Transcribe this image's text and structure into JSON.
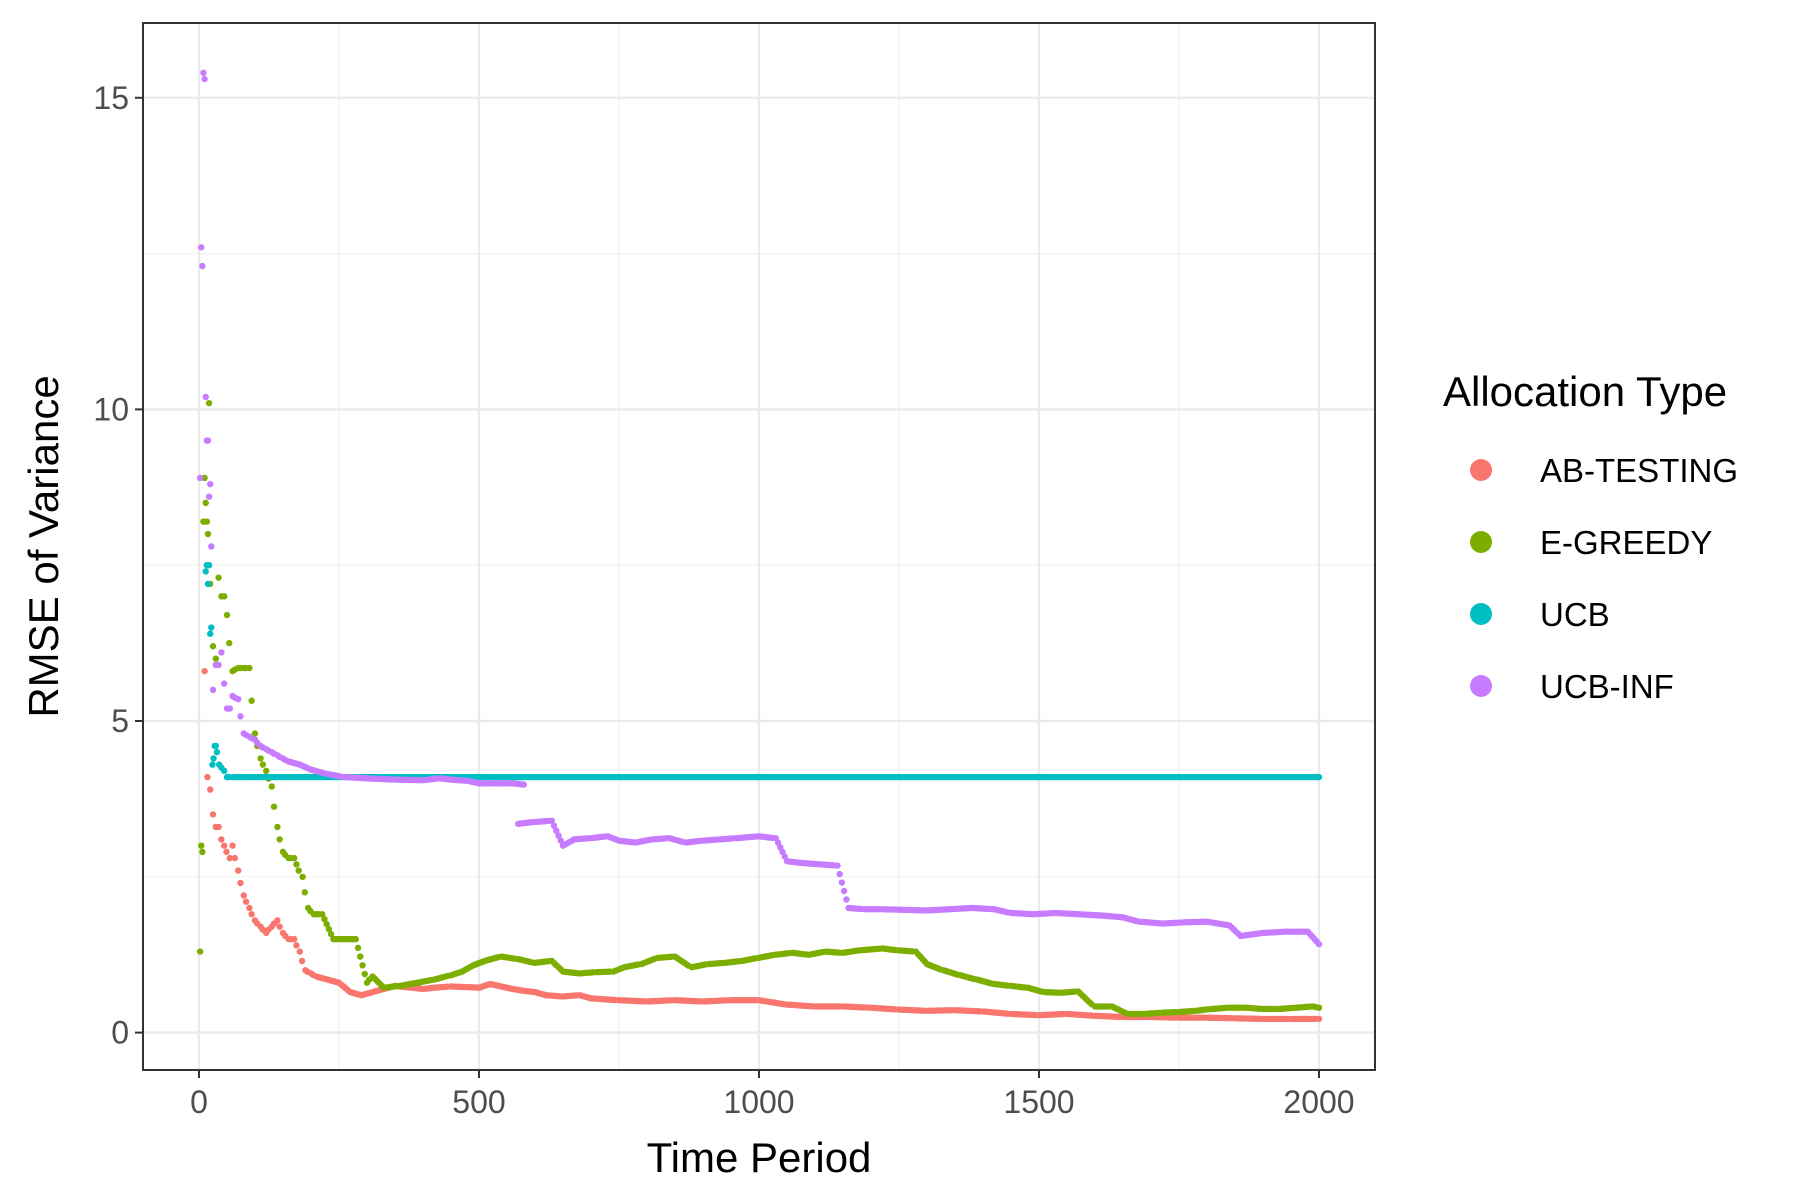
{
  "chart_data": {
    "type": "scatter",
    "xlabel": "Time Period",
    "ylabel": "RMSE of Variance",
    "xlim": [
      -100,
      2100
    ],
    "ylim": [
      -0.6,
      16.2
    ],
    "x_ticks": [
      0,
      500,
      1000,
      1500,
      2000
    ],
    "y_ticks": [
      0,
      5,
      10,
      15
    ],
    "grid": true,
    "legend": {
      "title": "Allocation Type",
      "placement": "right"
    },
    "series": [
      {
        "name": "AB-TESTING",
        "color": "#F8766D",
        "points": [
          [
            10,
            5.8
          ],
          [
            15,
            4.1
          ],
          [
            20,
            3.9
          ],
          [
            25,
            3.5
          ],
          [
            30,
            3.3
          ],
          [
            35,
            3.3
          ],
          [
            40,
            3.1
          ],
          [
            45,
            3.0
          ],
          [
            55,
            2.8
          ],
          [
            60,
            3.0
          ],
          [
            70,
            2.6
          ],
          [
            80,
            2.2
          ],
          [
            90,
            2.0
          ],
          [
            100,
            1.8
          ],
          [
            110,
            1.7
          ],
          [
            120,
            1.6
          ],
          [
            130,
            1.7
          ],
          [
            140,
            1.8
          ],
          [
            150,
            1.6
          ],
          [
            160,
            1.5
          ],
          [
            170,
            1.5
          ],
          [
            180,
            1.3
          ],
          [
            190,
            1.0
          ],
          [
            200,
            0.95
          ],
          [
            210,
            0.9
          ],
          [
            230,
            0.85
          ],
          [
            250,
            0.8
          ],
          [
            270,
            0.65
          ],
          [
            290,
            0.6
          ],
          [
            310,
            0.65
          ],
          [
            330,
            0.7
          ],
          [
            350,
            0.75
          ],
          [
            380,
            0.72
          ],
          [
            400,
            0.7
          ],
          [
            420,
            0.72
          ],
          [
            450,
            0.74
          ],
          [
            480,
            0.73
          ],
          [
            500,
            0.72
          ],
          [
            520,
            0.78
          ],
          [
            540,
            0.74
          ],
          [
            560,
            0.7
          ],
          [
            580,
            0.67
          ],
          [
            600,
            0.65
          ],
          [
            620,
            0.6
          ],
          [
            650,
            0.58
          ],
          [
            680,
            0.6
          ],
          [
            700,
            0.55
          ],
          [
            750,
            0.52
          ],
          [
            800,
            0.5
          ],
          [
            850,
            0.52
          ],
          [
            900,
            0.5
          ],
          [
            950,
            0.52
          ],
          [
            1000,
            0.52
          ],
          [
            1050,
            0.45
          ],
          [
            1100,
            0.42
          ],
          [
            1150,
            0.42
          ],
          [
            1200,
            0.4
          ],
          [
            1250,
            0.37
          ],
          [
            1300,
            0.35
          ],
          [
            1350,
            0.36
          ],
          [
            1400,
            0.34
          ],
          [
            1450,
            0.3
          ],
          [
            1500,
            0.28
          ],
          [
            1550,
            0.3
          ],
          [
            1600,
            0.27
          ],
          [
            1650,
            0.25
          ],
          [
            1700,
            0.25
          ],
          [
            1750,
            0.24
          ],
          [
            1800,
            0.24
          ],
          [
            1850,
            0.23
          ],
          [
            1900,
            0.22
          ],
          [
            1950,
            0.22
          ],
          [
            2000,
            0.22
          ]
        ]
      },
      {
        "name": "E-GREEDY",
        "color": "#7CAE00",
        "points": [
          [
            2,
            1.3
          ],
          [
            4,
            3.0
          ],
          [
            6,
            2.9
          ],
          [
            8,
            8.2
          ],
          [
            10,
            8.9
          ],
          [
            12,
            8.5
          ],
          [
            14,
            8.2
          ],
          [
            16,
            8.0
          ],
          [
            18,
            10.1
          ],
          [
            20,
            7.2
          ],
          [
            25,
            6.2
          ],
          [
            30,
            6.0
          ],
          [
            35,
            7.3
          ],
          [
            40,
            7.0
          ],
          [
            45,
            7.0
          ],
          [
            50,
            6.7
          ],
          [
            60,
            5.8
          ],
          [
            70,
            5.85
          ],
          [
            80,
            5.85
          ],
          [
            90,
            5.85
          ],
          [
            100,
            4.8
          ],
          [
            110,
            4.4
          ],
          [
            120,
            4.2
          ],
          [
            130,
            3.95
          ],
          [
            140,
            3.3
          ],
          [
            150,
            2.9
          ],
          [
            160,
            2.8
          ],
          [
            170,
            2.8
          ],
          [
            185,
            2.5
          ],
          [
            195,
            2.0
          ],
          [
            205,
            1.9
          ],
          [
            220,
            1.9
          ],
          [
            240,
            1.5
          ],
          [
            260,
            1.5
          ],
          [
            280,
            1.5
          ],
          [
            300,
            0.8
          ],
          [
            310,
            0.9
          ],
          [
            330,
            0.72
          ],
          [
            360,
            0.75
          ],
          [
            390,
            0.8
          ],
          [
            420,
            0.85
          ],
          [
            450,
            0.92
          ],
          [
            470,
            0.98
          ],
          [
            490,
            1.08
          ],
          [
            510,
            1.15
          ],
          [
            540,
            1.22
          ],
          [
            570,
            1.18
          ],
          [
            600,
            1.12
          ],
          [
            630,
            1.15
          ],
          [
            650,
            0.98
          ],
          [
            680,
            0.95
          ],
          [
            710,
            0.97
          ],
          [
            740,
            0.98
          ],
          [
            760,
            1.05
          ],
          [
            790,
            1.1
          ],
          [
            820,
            1.2
          ],
          [
            850,
            1.22
          ],
          [
            880,
            1.05
          ],
          [
            910,
            1.1
          ],
          [
            940,
            1.12
          ],
          [
            970,
            1.15
          ],
          [
            1000,
            1.2
          ],
          [
            1030,
            1.25
          ],
          [
            1060,
            1.28
          ],
          [
            1090,
            1.25
          ],
          [
            1120,
            1.3
          ],
          [
            1150,
            1.28
          ],
          [
            1180,
            1.32
          ],
          [
            1220,
            1.35
          ],
          [
            1250,
            1.32
          ],
          [
            1280,
            1.3
          ],
          [
            1300,
            1.1
          ],
          [
            1330,
            1.0
          ],
          [
            1360,
            0.92
          ],
          [
            1390,
            0.85
          ],
          [
            1420,
            0.78
          ],
          [
            1450,
            0.75
          ],
          [
            1480,
            0.72
          ],
          [
            1510,
            0.65
          ],
          [
            1540,
            0.64
          ],
          [
            1570,
            0.66
          ],
          [
            1600,
            0.42
          ],
          [
            1630,
            0.42
          ],
          [
            1660,
            0.3
          ],
          [
            1690,
            0.3
          ],
          [
            1720,
            0.32
          ],
          [
            1750,
            0.33
          ],
          [
            1780,
            0.35
          ],
          [
            1810,
            0.38
          ],
          [
            1840,
            0.4
          ],
          [
            1870,
            0.4
          ],
          [
            1900,
            0.38
          ],
          [
            1930,
            0.38
          ],
          [
            1960,
            0.4
          ],
          [
            1990,
            0.42
          ],
          [
            2000,
            0.4
          ]
        ]
      },
      {
        "name": "UCB",
        "color": "#00BFC4",
        "points": [
          [
            12,
            7.4
          ],
          [
            14,
            7.5
          ],
          [
            16,
            7.2
          ],
          [
            18,
            7.5
          ],
          [
            20,
            6.4
          ],
          [
            22,
            6.5
          ],
          [
            24,
            4.3
          ],
          [
            26,
            4.4
          ],
          [
            28,
            4.6
          ],
          [
            30,
            4.6
          ],
          [
            32,
            4.5
          ],
          [
            36,
            4.3
          ],
          [
            40,
            4.25
          ],
          [
            45,
            4.2
          ],
          [
            50,
            4.1
          ],
          [
            60,
            4.1
          ],
          [
            100,
            4.1
          ],
          [
            200,
            4.1
          ],
          [
            300,
            4.1
          ],
          [
            400,
            4.1
          ],
          [
            500,
            4.1
          ],
          [
            600,
            4.1
          ],
          [
            700,
            4.1
          ],
          [
            800,
            4.1
          ],
          [
            900,
            4.1
          ],
          [
            1000,
            4.1
          ],
          [
            1100,
            4.1
          ],
          [
            1200,
            4.1
          ],
          [
            1300,
            4.1
          ],
          [
            1400,
            4.1
          ],
          [
            1500,
            4.1
          ],
          [
            1600,
            4.1
          ],
          [
            1700,
            4.1
          ],
          [
            1800,
            4.1
          ],
          [
            1900,
            4.1
          ],
          [
            2000,
            4.1
          ]
        ]
      },
      {
        "name": "UCB-INF",
        "color": "#C77CFF",
        "points": [
          [
            2,
            8.9
          ],
          [
            4,
            12.6
          ],
          [
            6,
            12.3
          ],
          [
            8,
            15.4
          ],
          [
            10,
            15.3
          ],
          [
            12,
            10.2
          ],
          [
            14,
            9.5
          ],
          [
            16,
            9.5
          ],
          [
            18,
            8.6
          ],
          [
            20,
            8.8
          ],
          [
            22,
            7.8
          ],
          [
            25,
            5.5
          ],
          [
            30,
            5.9
          ],
          [
            35,
            5.9
          ],
          [
            40,
            6.1
          ],
          [
            45,
            5.6
          ],
          [
            50,
            5.2
          ],
          [
            55,
            5.2
          ],
          [
            60,
            5.4
          ],
          [
            70,
            5.35
          ],
          [
            80,
            4.8
          ],
          [
            90,
            4.75
          ],
          [
            100,
            4.7
          ],
          [
            110,
            4.6
          ],
          [
            120,
            4.55
          ],
          [
            130,
            4.5
          ],
          [
            140,
            4.45
          ],
          [
            150,
            4.4
          ],
          [
            160,
            4.35
          ],
          [
            180,
            4.3
          ],
          [
            200,
            4.22
          ],
          [
            230,
            4.15
          ],
          [
            260,
            4.1
          ],
          [
            300,
            4.08
          ],
          [
            350,
            4.06
          ],
          [
            400,
            4.05
          ],
          [
            430,
            4.08
          ],
          [
            450,
            4.06
          ],
          [
            480,
            4.04
          ],
          [
            500,
            4.0
          ],
          [
            530,
            4.0
          ],
          [
            560,
            4.0
          ],
          [
            580,
            3.98
          ],
          [
            570,
            3.35
          ],
          [
            600,
            3.38
          ],
          [
            630,
            3.4
          ],
          [
            650,
            3.0
          ],
          [
            670,
            3.1
          ],
          [
            700,
            3.12
          ],
          [
            730,
            3.15
          ],
          [
            750,
            3.08
          ],
          [
            780,
            3.05
          ],
          [
            810,
            3.1
          ],
          [
            840,
            3.12
          ],
          [
            870,
            3.05
          ],
          [
            900,
            3.08
          ],
          [
            930,
            3.1
          ],
          [
            960,
            3.12
          ],
          [
            1000,
            3.15
          ],
          [
            1030,
            3.12
          ],
          [
            1050,
            2.75
          ],
          [
            1080,
            2.72
          ],
          [
            1110,
            2.7
          ],
          [
            1140,
            2.68
          ],
          [
            1160,
            2.0
          ],
          [
            1190,
            1.98
          ],
          [
            1220,
            1.98
          ],
          [
            1260,
            1.97
          ],
          [
            1300,
            1.96
          ],
          [
            1340,
            1.98
          ],
          [
            1380,
            2.0
          ],
          [
            1420,
            1.98
          ],
          [
            1450,
            1.92
          ],
          [
            1490,
            1.9
          ],
          [
            1530,
            1.92
          ],
          [
            1570,
            1.9
          ],
          [
            1610,
            1.88
          ],
          [
            1650,
            1.85
          ],
          [
            1680,
            1.78
          ],
          [
            1720,
            1.75
          ],
          [
            1760,
            1.77
          ],
          [
            1800,
            1.78
          ],
          [
            1840,
            1.72
          ],
          [
            1860,
            1.55
          ],
          [
            1900,
            1.6
          ],
          [
            1940,
            1.62
          ],
          [
            1980,
            1.62
          ],
          [
            2000,
            1.42
          ]
        ]
      }
    ]
  }
}
